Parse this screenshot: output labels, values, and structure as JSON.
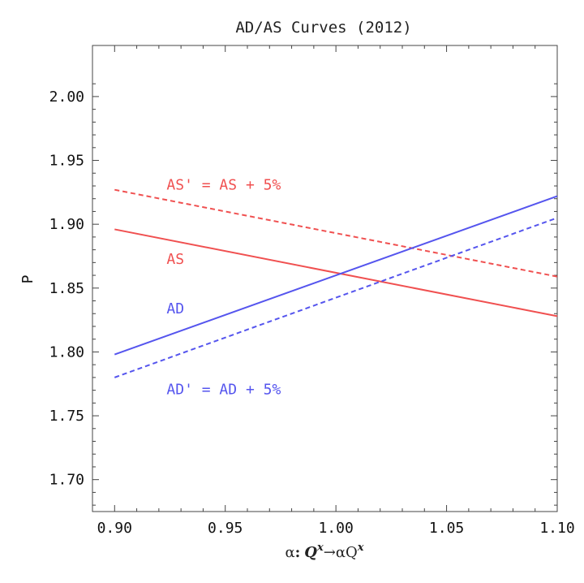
{
  "chart_data": {
    "type": "line",
    "title": "AD/AS Curves (2012)",
    "xlabel": "α: Qˣ → αQˣ",
    "xlabel_parts": {
      "alpha": "α",
      "colon": ":",
      "q1": "Q",
      "sup1": "x",
      "arrow": "→",
      "alpha2": "α",
      "q2": "Q",
      "sup2": "x"
    },
    "ylabel": "P",
    "xlim": [
      0.89,
      1.1
    ],
    "ylim": [
      1.675,
      2.04
    ],
    "x_ticks": [
      "0.90",
      "0.95",
      "1.00",
      "1.05",
      "1.10"
    ],
    "x_tick_values": [
      0.9,
      0.95,
      1.0,
      1.05,
      1.1
    ],
    "y_ticks": [
      "1.70",
      "1.75",
      "1.80",
      "1.85",
      "1.90",
      "1.95",
      "2.00"
    ],
    "y_tick_values": [
      1.7,
      1.75,
      1.8,
      1.85,
      1.9,
      1.95,
      2.0
    ],
    "grid": false,
    "series": [
      {
        "name": "AS",
        "color": "#f05050",
        "dash": "solid",
        "x": [
          0.9,
          1.1
        ],
        "y": [
          1.896,
          1.828
        ]
      },
      {
        "name": "AS' = AS + 5%",
        "color": "#f05050",
        "dash": "dashed",
        "x": [
          0.9,
          1.1
        ],
        "y": [
          1.927,
          1.859
        ]
      },
      {
        "name": "AD",
        "color": "#5555ee",
        "dash": "solid",
        "x": [
          0.9,
          1.1
        ],
        "y": [
          1.798,
          1.922
        ]
      },
      {
        "name": "AD' = AD + 5%",
        "color": "#5555ee",
        "dash": "dashed",
        "x": [
          0.9,
          1.1
        ],
        "y": [
          1.78,
          1.905
        ]
      }
    ],
    "annotations": [
      {
        "text": "AS' = AS + 5%",
        "color": "#f05050",
        "x": 0.9235,
        "y": 1.927
      },
      {
        "text": "AS",
        "color": "#f05050",
        "x": 0.9235,
        "y": 1.869
      },
      {
        "text": "AD",
        "color": "#5555ee",
        "x": 0.9235,
        "y": 1.83
      },
      {
        "text": "AD' = AD + 5%",
        "color": "#5555ee",
        "x": 0.9235,
        "y": 1.767
      }
    ]
  }
}
